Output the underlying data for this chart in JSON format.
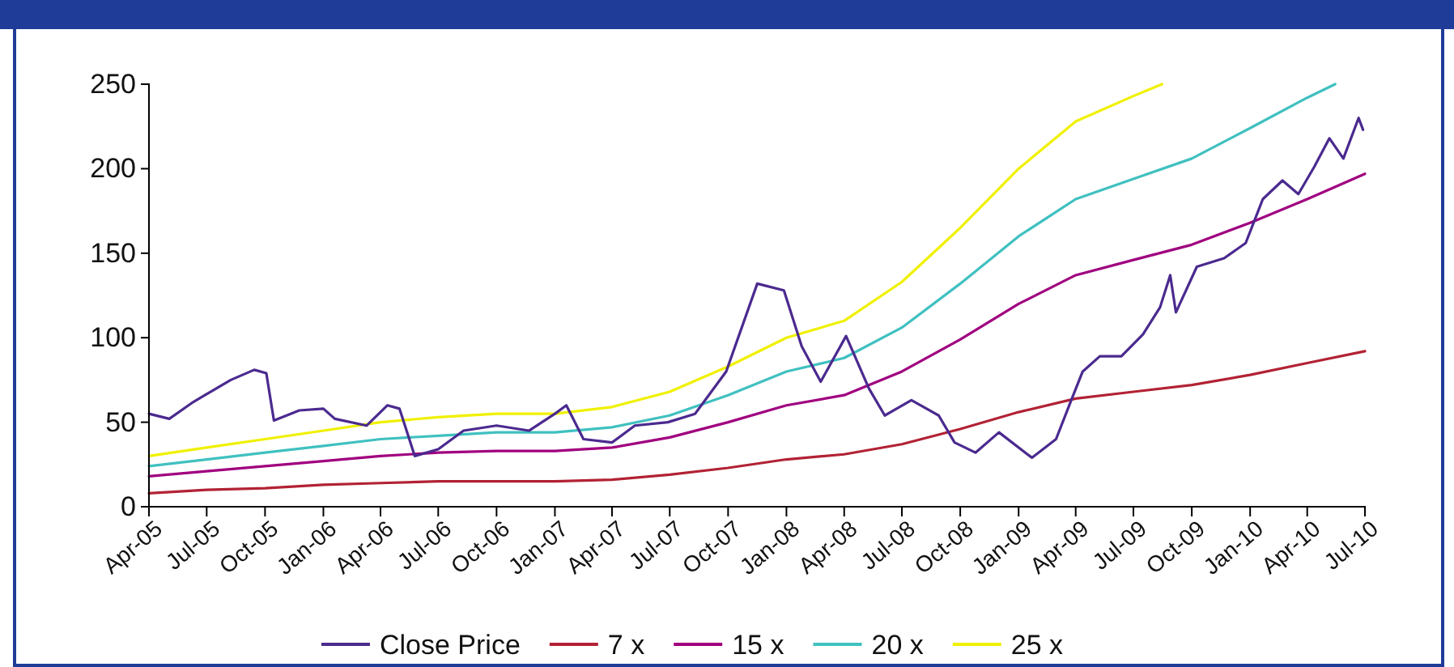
{
  "chart_data": {
    "type": "line",
    "xlim": [
      "2005-04-01",
      "2010-07-01"
    ],
    "xticks": [
      {
        "value": "2005-04-01",
        "label": "Apr-05"
      },
      {
        "value": "2005-07-01",
        "label": "Jul-05"
      },
      {
        "value": "2005-10-01",
        "label": "Oct-05"
      },
      {
        "value": "2006-01-01",
        "label": "Jan-06"
      },
      {
        "value": "2006-04-01",
        "label": "Apr-06"
      },
      {
        "value": "2006-07-01",
        "label": "Jul-06"
      },
      {
        "value": "2006-10-01",
        "label": "Oct-06"
      },
      {
        "value": "2007-01-01",
        "label": "Jan-07"
      },
      {
        "value": "2007-04-01",
        "label": "Apr-07"
      },
      {
        "value": "2007-07-01",
        "label": "Jul-07"
      },
      {
        "value": "2007-10-01",
        "label": "Oct-07"
      },
      {
        "value": "2008-01-01",
        "label": "Jan-08"
      },
      {
        "value": "2008-04-01",
        "label": "Apr-08"
      },
      {
        "value": "2008-07-01",
        "label": "Jul-08"
      },
      {
        "value": "2008-10-01",
        "label": "Oct-08"
      },
      {
        "value": "2009-01-01",
        "label": "Jan-09"
      },
      {
        "value": "2009-04-01",
        "label": "Apr-09"
      },
      {
        "value": "2009-07-01",
        "label": "Jul-09"
      },
      {
        "value": "2009-10-01",
        "label": "Oct-09"
      },
      {
        "value": "2010-01-01",
        "label": "Jan-10"
      },
      {
        "value": "2010-04-01",
        "label": "Apr-10"
      },
      {
        "value": "2010-07-01",
        "label": "Jul-10"
      }
    ],
    "ylim": [
      0,
      250
    ],
    "yticks": [
      0,
      50,
      100,
      150,
      200,
      250
    ],
    "grid": false,
    "legend": "bottom",
    "line_style": "solid",
    "marker": "none",
    "series": [
      {
        "name": "Close Price",
        "color": "#4b2a8f",
        "x": [
          "2005-04-01",
          "2005-05-03",
          "2005-06-10",
          "2005-08-08",
          "2005-09-14",
          "2005-10-03",
          "2005-10-15",
          "2005-11-24",
          "2006-01-01",
          "2006-01-19",
          "2006-03-10",
          "2006-04-12",
          "2006-05-01",
          "2006-05-25",
          "2006-07-01",
          "2006-08-10",
          "2006-10-01",
          "2006-11-21",
          "2007-01-01",
          "2007-01-19",
          "2007-02-15",
          "2007-04-01",
          "2007-05-07",
          "2007-06-28",
          "2007-08-10",
          "2007-09-28",
          "2007-11-16",
          "2007-12-28",
          "2008-01-25",
          "2008-02-24",
          "2008-04-04",
          "2008-05-10",
          "2008-06-04",
          "2008-07-16",
          "2008-08-28",
          "2008-09-22",
          "2008-10-25",
          "2008-12-01",
          "2009-01-22",
          "2009-03-01",
          "2009-03-25",
          "2009-04-12",
          "2009-05-09",
          "2009-06-12",
          "2009-07-16",
          "2009-08-12",
          "2009-08-28",
          "2009-09-06",
          "2009-10-09",
          "2009-11-21",
          "2009-12-25",
          "2010-01-21",
          "2010-02-21",
          "2010-03-18",
          "2010-04-12",
          "2010-05-06",
          "2010-05-28",
          "2010-06-21",
          "2010-06-28"
        ],
        "values": [
          55,
          52,
          62,
          75,
          81,
          79,
          51,
          57,
          58,
          52,
          48,
          60,
          58,
          30,
          34,
          45,
          48,
          45,
          55,
          60,
          40,
          38,
          48,
          50,
          55,
          80,
          132,
          128,
          95,
          74,
          101,
          70,
          54,
          63,
          54,
          38,
          32,
          44,
          29,
          40,
          63,
          80,
          89,
          89,
          102,
          118,
          137,
          115,
          142,
          147,
          156,
          182,
          193,
          185,
          201,
          218,
          206,
          230,
          223
        ]
      },
      {
        "name": "7 x",
        "color": "#b22234",
        "x": [
          "2005-04-01",
          "2005-07-01",
          "2005-10-01",
          "2006-01-01",
          "2006-04-01",
          "2006-07-01",
          "2006-10-01",
          "2007-01-01",
          "2007-04-01",
          "2007-07-01",
          "2007-10-01",
          "2008-01-01",
          "2008-04-01",
          "2008-07-01",
          "2008-10-01",
          "2009-01-01",
          "2009-04-01",
          "2009-07-01",
          "2009-10-01",
          "2010-01-01",
          "2010-04-01",
          "2010-07-01"
        ],
        "values": [
          8,
          10,
          11,
          13,
          14,
          15,
          15,
          15,
          16,
          19,
          23,
          28,
          31,
          37,
          46,
          56,
          64,
          68,
          72,
          78,
          85,
          92
        ]
      },
      {
        "name": "15 x",
        "color": "#a0007f",
        "x": [
          "2005-04-01",
          "2005-07-01",
          "2005-10-01",
          "2006-01-01",
          "2006-04-01",
          "2006-07-01",
          "2006-10-01",
          "2007-01-01",
          "2007-04-01",
          "2007-07-01",
          "2007-10-01",
          "2008-01-01",
          "2008-04-01",
          "2008-07-01",
          "2008-10-01",
          "2009-01-01",
          "2009-04-01",
          "2009-07-01",
          "2009-10-01",
          "2010-01-01",
          "2010-04-01",
          "2010-07-01"
        ],
        "values": [
          18,
          21,
          24,
          27,
          30,
          32,
          33,
          33,
          35,
          41,
          50,
          60,
          66,
          80,
          99,
          120,
          137,
          146,
          155,
          168,
          182,
          197
        ]
      },
      {
        "name": "20 x",
        "color": "#40c0c0",
        "x": [
          "2005-04-01",
          "2005-07-01",
          "2005-10-01",
          "2006-01-01",
          "2006-04-01",
          "2006-07-01",
          "2006-10-01",
          "2007-01-01",
          "2007-04-01",
          "2007-07-01",
          "2007-10-01",
          "2008-01-01",
          "2008-04-01",
          "2008-07-01",
          "2008-10-01",
          "2009-01-01",
          "2009-04-01",
          "2009-07-01",
          "2009-10-01",
          "2010-01-01",
          "2010-04-01",
          "2010-05-15"
        ],
        "values": [
          24,
          28,
          32,
          36,
          40,
          42,
          44,
          44,
          47,
          54,
          66,
          80,
          88,
          106,
          132,
          160,
          182,
          194,
          206,
          224,
          242,
          250
        ]
      },
      {
        "name": "25 x",
        "color": "#f0f000",
        "x": [
          "2005-04-01",
          "2005-07-01",
          "2005-10-01",
          "2006-01-01",
          "2006-04-01",
          "2006-07-01",
          "2006-10-01",
          "2007-01-01",
          "2007-04-01",
          "2007-07-01",
          "2007-10-01",
          "2008-01-01",
          "2008-04-01",
          "2008-07-01",
          "2008-10-01",
          "2009-01-01",
          "2009-04-01",
          "2009-07-01",
          "2009-08-15"
        ],
        "values": [
          30,
          35,
          40,
          45,
          50,
          53,
          55,
          55,
          59,
          68,
          83,
          100,
          110,
          133,
          165,
          200,
          228,
          243,
          250
        ]
      }
    ]
  }
}
